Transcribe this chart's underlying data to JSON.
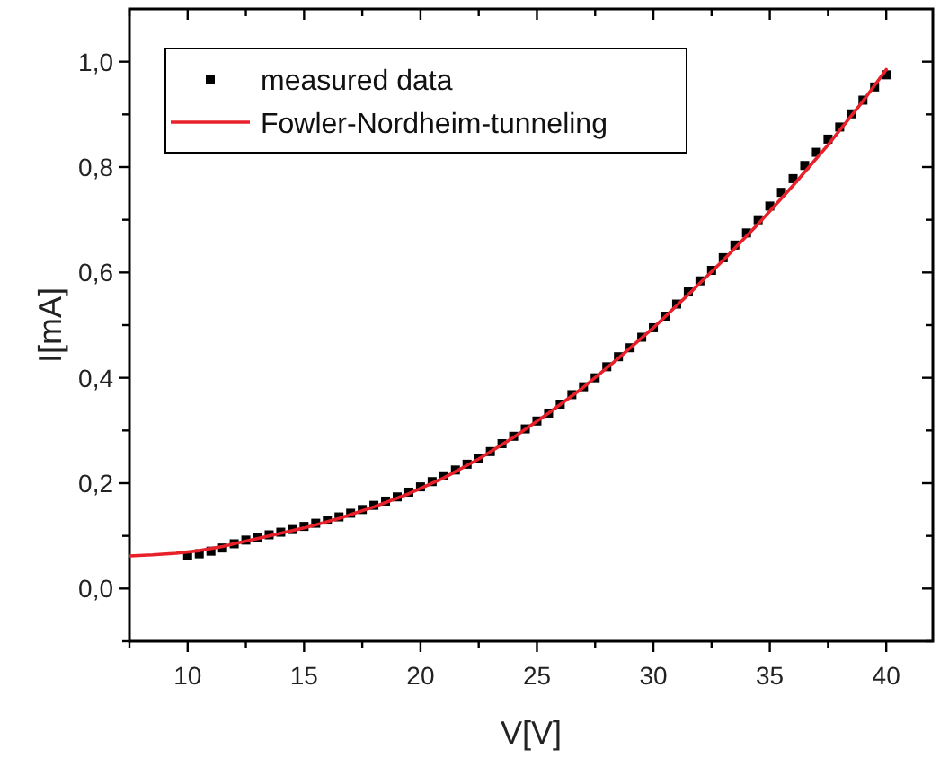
{
  "chart_data": {
    "type": "scatter",
    "xlabel": "V[V]",
    "ylabel": "I[mA]",
    "xlim": [
      7.5,
      42
    ],
    "ylim": [
      -0.1,
      1.1
    ],
    "xticks": [
      {
        "value": 7.5,
        "label": null
      },
      10,
      {
        "value": 12.5,
        "label": null
      },
      15,
      {
        "value": 17.5,
        "label": null
      },
      20,
      {
        "value": 22.5,
        "label": null
      },
      25,
      {
        "value": 27.5,
        "label": null
      },
      30,
      {
        "value": 32.5,
        "label": null
      },
      35,
      {
        "value": 37.5,
        "label": null
      },
      40
    ],
    "yticks": [
      {
        "value": -0.1,
        "label": null
      },
      {
        "value": 0,
        "label": "0,0"
      },
      {
        "value": 0.1,
        "label": null
      },
      {
        "value": 0.2,
        "label": "0,2"
      },
      {
        "value": 0.3,
        "label": null
      },
      {
        "value": 0.4,
        "label": "0,4"
      },
      {
        "value": 0.5,
        "label": null
      },
      {
        "value": 0.6,
        "label": "0,6"
      },
      {
        "value": 0.7,
        "label": null
      },
      {
        "value": 0.8,
        "label": "0,8"
      },
      {
        "value": 0.9,
        "label": null
      },
      {
        "value": 1.0,
        "label": "1,0"
      }
    ],
    "grid": false,
    "legend": "top left",
    "series": [
      {
        "name": "measured data",
        "marker": "square",
        "color": "#000000",
        "x": [
          10,
          10.5,
          11,
          11.5,
          12,
          12.5,
          13,
          13.5,
          14,
          14.5,
          15,
          15.5,
          16,
          16.5,
          17,
          17.5,
          18,
          18.5,
          19,
          19.5,
          20,
          20.5,
          21,
          21.5,
          22,
          22.5,
          23,
          23.5,
          24,
          24.5,
          25,
          25.5,
          26,
          26.5,
          27,
          27.5,
          28,
          28.5,
          29,
          29.5,
          30,
          30.5,
          31,
          31.5,
          32,
          32.5,
          33,
          33.5,
          34,
          34.5,
          35,
          35.5,
          36,
          36.5,
          37,
          37.5,
          38,
          38.5,
          39,
          39.5,
          40
        ],
        "values": [
          0.062,
          0.066,
          0.071,
          0.077,
          0.085,
          0.092,
          0.097,
          0.102,
          0.107,
          0.112,
          0.118,
          0.124,
          0.13,
          0.136,
          0.143,
          0.15,
          0.158,
          0.166,
          0.174,
          0.183,
          0.193,
          0.203,
          0.214,
          0.225,
          0.236,
          0.246,
          0.26,
          0.275,
          0.289,
          0.303,
          0.318,
          0.333,
          0.35,
          0.368,
          0.383,
          0.4,
          0.421,
          0.44,
          0.457,
          0.477,
          0.495,
          0.517,
          0.54,
          0.563,
          0.584,
          0.604,
          0.628,
          0.652,
          0.675,
          0.7,
          0.726,
          0.752,
          0.778,
          0.803,
          0.828,
          0.853,
          0.876,
          0.901,
          0.927,
          0.952,
          0.975
        ]
      },
      {
        "name": "Fowler-Nordheim-tunneling",
        "type": "line",
        "marker": "none",
        "line_style": "solid",
        "color": "#e8202a",
        "x": [
          7.5,
          8.5,
          9.5,
          10.5,
          11.5,
          12.5,
          13.5,
          15,
          16.5,
          18,
          19.5,
          21,
          22.5,
          24,
          25.5,
          27,
          28.5,
          30,
          31.5,
          33,
          34.5,
          36,
          37.5,
          39,
          40
        ],
        "values": [
          0.062,
          0.064,
          0.067,
          0.072,
          0.08,
          0.09,
          0.1,
          0.115,
          0.133,
          0.155,
          0.18,
          0.21,
          0.246,
          0.287,
          0.333,
          0.382,
          0.437,
          0.495,
          0.558,
          0.623,
          0.692,
          0.765,
          0.842,
          0.925,
          0.985
        ]
      }
    ]
  }
}
